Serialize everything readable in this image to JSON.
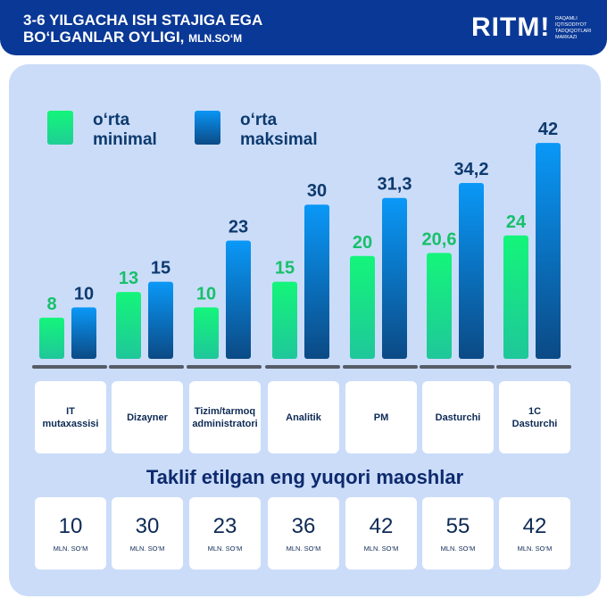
{
  "header": {
    "title_line1": "3-6 YILGACHA ISH STAJIGA EGA",
    "title_line2": "BO‘LGANLAR OYLIGI,",
    "unit": "MLN.SO‘M",
    "logo": "RITM!",
    "logo_sub": "RAQAMLI IQTISODIYOT TADQIQOTLARI MARKAZI"
  },
  "chart_data": {
    "type": "bar",
    "categories": [
      "IT\nmutaxassisi",
      "Dizayner",
      "Tizim/tarmoq\nadministratori",
      "Analitik",
      "PM",
      "Dasturchi",
      "1C\nDasturchi"
    ],
    "series": [
      {
        "name": "o‘rta minimal",
        "values": [
          8,
          13,
          10,
          15,
          20,
          20.6,
          24
        ],
        "labels": [
          "8",
          "13",
          "10",
          "15",
          "20",
          "20,6",
          "24"
        ],
        "color": "#16e27a"
      },
      {
        "name": "o‘rta maksimal",
        "values": [
          10,
          15,
          23,
          30,
          31.3,
          34.2,
          42
        ],
        "labels": [
          "10",
          "15",
          "23",
          "30",
          "31,3",
          "34,2",
          "42"
        ],
        "color": "#0a8ef0"
      }
    ],
    "legend": "top-left",
    "grid": false
  },
  "legend": {
    "min_l1": "o‘rta",
    "min_l2": "minimal",
    "max_l1": "o‘rta",
    "max_l2": "maksimal"
  },
  "top_offers": {
    "title": "Taklif etilgan eng yuqori maoshlar",
    "unit": "MLN. SO‘M",
    "values": [
      "10",
      "30",
      "23",
      "36",
      "42",
      "55",
      "42"
    ]
  },
  "colors": {
    "header": "#0a3896",
    "panel": "#cbdcf9",
    "min_label": "#17c06a",
    "max_label": "#0d3a6e"
  }
}
